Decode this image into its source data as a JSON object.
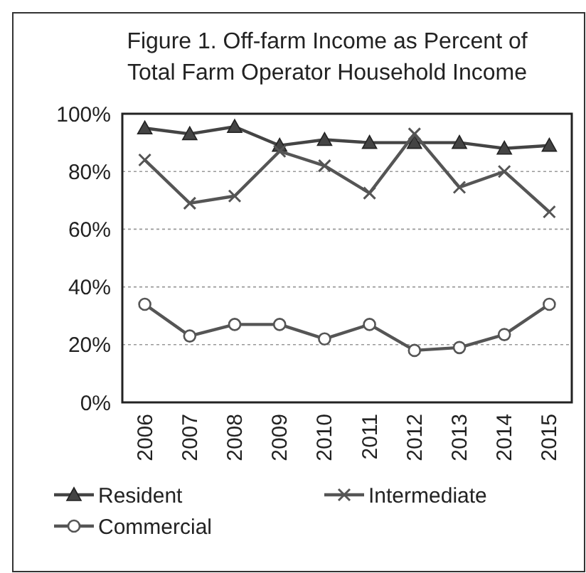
{
  "chart_data": {
    "type": "line",
    "title": "Figure 1. Off-farm Income as Percent of Total Farm Operator Household Income",
    "categories": [
      "2006",
      "2007",
      "2008",
      "2009",
      "2010",
      "2011",
      "2012",
      "2013",
      "2014",
      "2015"
    ],
    "series": [
      {
        "name": "Resident",
        "color": "#444444",
        "marker": "triangle",
        "values": [
          95,
          93,
          95.5,
          89,
          91,
          90,
          90,
          90,
          88,
          89
        ]
      },
      {
        "name": "Intermediate",
        "color": "#555555",
        "marker": "cross",
        "values": [
          84,
          69,
          71.5,
          87,
          82,
          72.5,
          93,
          74.5,
          80,
          66
        ]
      },
      {
        "name": "Commercial",
        "color": "#555555",
        "marker": "circle",
        "values": [
          34,
          23,
          27,
          27,
          22,
          27,
          18,
          19,
          23.5,
          34
        ]
      }
    ],
    "ylim": [
      0,
      100
    ],
    "yticks": [
      {
        "value": 0,
        "label": "0%"
      },
      {
        "value": 20,
        "label": "20%"
      },
      {
        "value": 40,
        "label": "40%"
      },
      {
        "value": 60,
        "label": "60%"
      },
      {
        "value": 80,
        "label": "80%"
      },
      {
        "value": 100,
        "label": "100%"
      }
    ],
    "grid": "y",
    "legend": "bottom",
    "line_style": "solid"
  }
}
